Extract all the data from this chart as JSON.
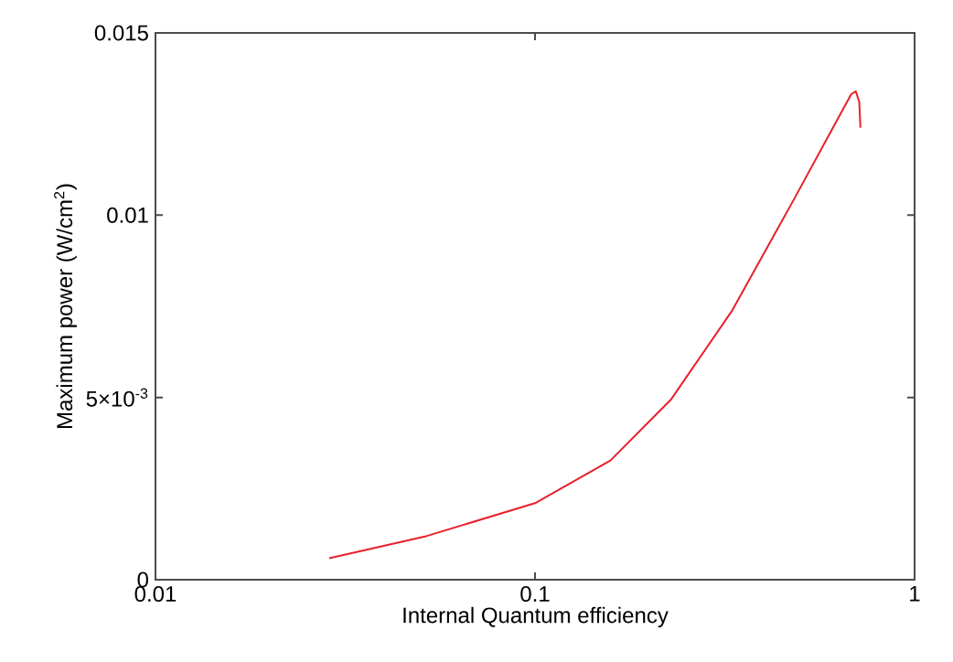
{
  "chart_data": {
    "type": "line",
    "xlabel": "Internal Quantum efficiency",
    "ylabel": "Maximum power (W/cm$^{2}$)",
    "log": "x",
    "grid": false,
    "marker": "none",
    "line_style": "solid",
    "xlim": [
      0.01,
      1
    ],
    "xticks": [
      0.01,
      0.1,
      1
    ],
    "ylim": [
      0,
      0.015
    ],
    "yticks": [
      0,
      {
        "value": 0.005,
        "label": "5×10$^{-3}$"
      },
      0.01,
      0.015
    ],
    "x": [
      0.0287,
      0.0519,
      0.1,
      0.158,
      0.228,
      0.33,
      0.479,
      0.597,
      0.681,
      0.7,
      0.715,
      0.72
    ],
    "series": [
      {
        "color": "#e8202a",
        "values": [
          0.00059,
          0.0012,
          0.0021,
          0.00327,
          0.00494,
          0.00737,
          0.0104,
          0.01223,
          0.01332,
          0.0134,
          0.0131,
          0.0124
        ]
      }
    ]
  }
}
